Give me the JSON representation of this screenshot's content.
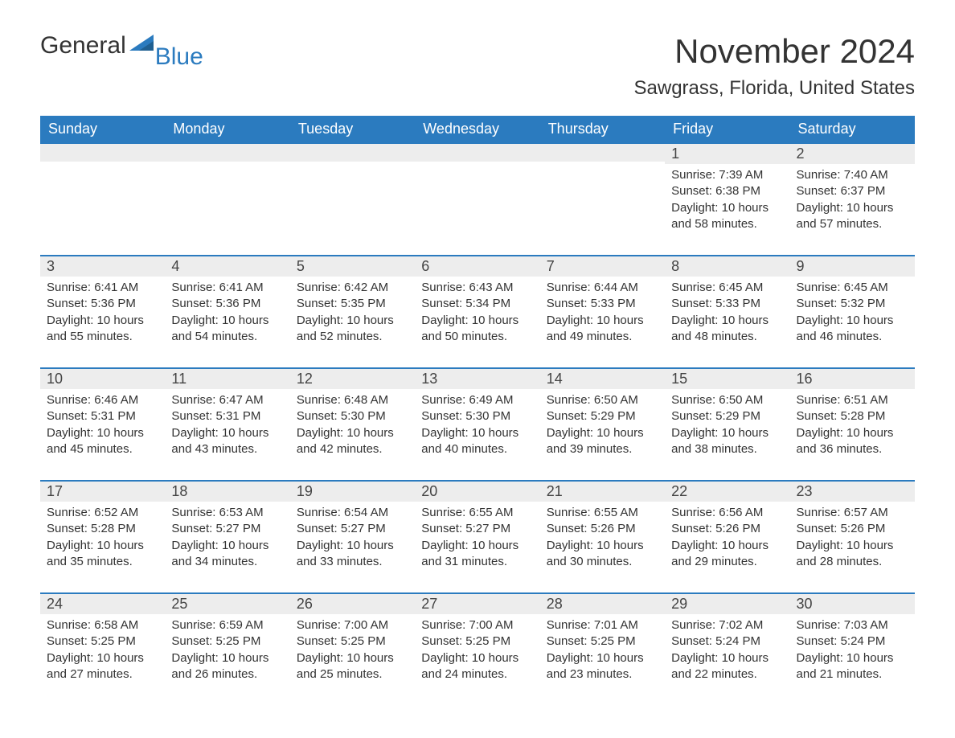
{
  "logo": {
    "general": "General",
    "blue": "Blue"
  },
  "title": "November 2024",
  "location": "Sawgrass, Florida, United States",
  "colors": {
    "header_bg": "#2b7bbf",
    "header_text": "#ffffff",
    "day_num_bg": "#ededed",
    "border": "#2b7bbf",
    "text": "#333333",
    "logo_blue": "#2b7bbf"
  },
  "typography": {
    "title_fontsize": 42,
    "location_fontsize": 24,
    "header_fontsize": 18,
    "daynum_fontsize": 18,
    "body_fontsize": 15
  },
  "layout": {
    "columns": 7,
    "rows": 5,
    "first_day_column_index": 5
  },
  "weekdays": [
    "Sunday",
    "Monday",
    "Tuesday",
    "Wednesday",
    "Thursday",
    "Friday",
    "Saturday"
  ],
  "days": [
    {
      "n": 1,
      "sunrise": "7:39 AM",
      "sunset": "6:38 PM",
      "daylight": "10 hours and 58 minutes."
    },
    {
      "n": 2,
      "sunrise": "7:40 AM",
      "sunset": "6:37 PM",
      "daylight": "10 hours and 57 minutes."
    },
    {
      "n": 3,
      "sunrise": "6:41 AM",
      "sunset": "5:36 PM",
      "daylight": "10 hours and 55 minutes."
    },
    {
      "n": 4,
      "sunrise": "6:41 AM",
      "sunset": "5:36 PM",
      "daylight": "10 hours and 54 minutes."
    },
    {
      "n": 5,
      "sunrise": "6:42 AM",
      "sunset": "5:35 PM",
      "daylight": "10 hours and 52 minutes."
    },
    {
      "n": 6,
      "sunrise": "6:43 AM",
      "sunset": "5:34 PM",
      "daylight": "10 hours and 50 minutes."
    },
    {
      "n": 7,
      "sunrise": "6:44 AM",
      "sunset": "5:33 PM",
      "daylight": "10 hours and 49 minutes."
    },
    {
      "n": 8,
      "sunrise": "6:45 AM",
      "sunset": "5:33 PM",
      "daylight": "10 hours and 48 minutes."
    },
    {
      "n": 9,
      "sunrise": "6:45 AM",
      "sunset": "5:32 PM",
      "daylight": "10 hours and 46 minutes."
    },
    {
      "n": 10,
      "sunrise": "6:46 AM",
      "sunset": "5:31 PM",
      "daylight": "10 hours and 45 minutes."
    },
    {
      "n": 11,
      "sunrise": "6:47 AM",
      "sunset": "5:31 PM",
      "daylight": "10 hours and 43 minutes."
    },
    {
      "n": 12,
      "sunrise": "6:48 AM",
      "sunset": "5:30 PM",
      "daylight": "10 hours and 42 minutes."
    },
    {
      "n": 13,
      "sunrise": "6:49 AM",
      "sunset": "5:30 PM",
      "daylight": "10 hours and 40 minutes."
    },
    {
      "n": 14,
      "sunrise": "6:50 AM",
      "sunset": "5:29 PM",
      "daylight": "10 hours and 39 minutes."
    },
    {
      "n": 15,
      "sunrise": "6:50 AM",
      "sunset": "5:29 PM",
      "daylight": "10 hours and 38 minutes."
    },
    {
      "n": 16,
      "sunrise": "6:51 AM",
      "sunset": "5:28 PM",
      "daylight": "10 hours and 36 minutes."
    },
    {
      "n": 17,
      "sunrise": "6:52 AM",
      "sunset": "5:28 PM",
      "daylight": "10 hours and 35 minutes."
    },
    {
      "n": 18,
      "sunrise": "6:53 AM",
      "sunset": "5:27 PM",
      "daylight": "10 hours and 34 minutes."
    },
    {
      "n": 19,
      "sunrise": "6:54 AM",
      "sunset": "5:27 PM",
      "daylight": "10 hours and 33 minutes."
    },
    {
      "n": 20,
      "sunrise": "6:55 AM",
      "sunset": "5:27 PM",
      "daylight": "10 hours and 31 minutes."
    },
    {
      "n": 21,
      "sunrise": "6:55 AM",
      "sunset": "5:26 PM",
      "daylight": "10 hours and 30 minutes."
    },
    {
      "n": 22,
      "sunrise": "6:56 AM",
      "sunset": "5:26 PM",
      "daylight": "10 hours and 29 minutes."
    },
    {
      "n": 23,
      "sunrise": "6:57 AM",
      "sunset": "5:26 PM",
      "daylight": "10 hours and 28 minutes."
    },
    {
      "n": 24,
      "sunrise": "6:58 AM",
      "sunset": "5:25 PM",
      "daylight": "10 hours and 27 minutes."
    },
    {
      "n": 25,
      "sunrise": "6:59 AM",
      "sunset": "5:25 PM",
      "daylight": "10 hours and 26 minutes."
    },
    {
      "n": 26,
      "sunrise": "7:00 AM",
      "sunset": "5:25 PM",
      "daylight": "10 hours and 25 minutes."
    },
    {
      "n": 27,
      "sunrise": "7:00 AM",
      "sunset": "5:25 PM",
      "daylight": "10 hours and 24 minutes."
    },
    {
      "n": 28,
      "sunrise": "7:01 AM",
      "sunset": "5:25 PM",
      "daylight": "10 hours and 23 minutes."
    },
    {
      "n": 29,
      "sunrise": "7:02 AM",
      "sunset": "5:24 PM",
      "daylight": "10 hours and 22 minutes."
    },
    {
      "n": 30,
      "sunrise": "7:03 AM",
      "sunset": "5:24 PM",
      "daylight": "10 hours and 21 minutes."
    }
  ],
  "labels": {
    "sunrise": "Sunrise:",
    "sunset": "Sunset:",
    "daylight": "Daylight:"
  }
}
